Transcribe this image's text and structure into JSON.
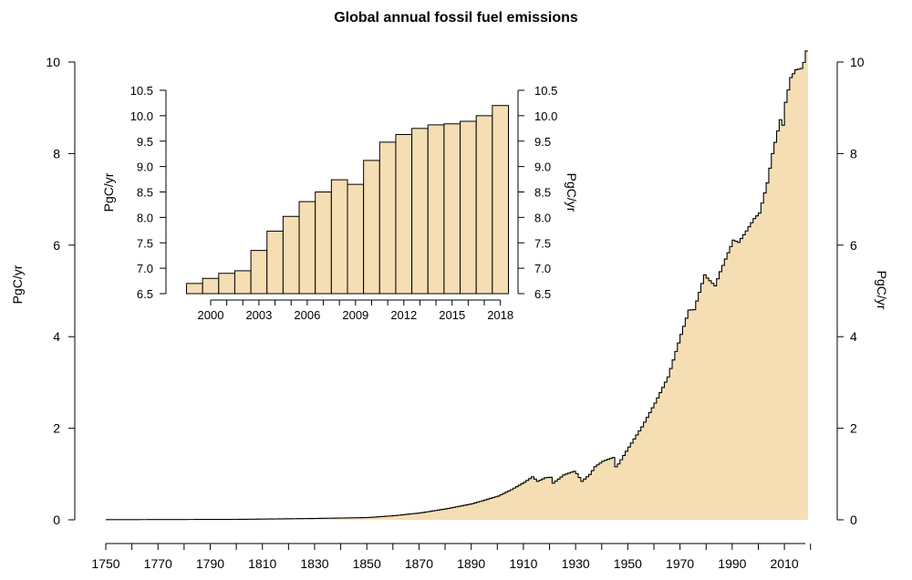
{
  "chart_data": [
    {
      "type": "area",
      "title": "Global annual fossil fuel emissions",
      "xlabel": "",
      "ylabel": "PgC/yr",
      "ylabel_right": "PgC/yr",
      "xlim": [
        1750,
        2018
      ],
      "ylim": [
        0,
        10
      ],
      "x_ticks": [
        "1750",
        "1770",
        "1790",
        "1810",
        "1830",
        "1850",
        "1870",
        "1890",
        "1910",
        "1930",
        "1950",
        "1970",
        "1990",
        "2010"
      ],
      "y_ticks": [
        "0",
        "2",
        "4",
        "6",
        "8",
        "10"
      ],
      "grid": false,
      "fill_color": "#f5deb3",
      "line_color": "#000000",
      "anchors": {
        "x": [
          1750,
          1800,
          1830,
          1850,
          1860,
          1870,
          1880,
          1890,
          1900,
          1905,
          1910,
          1913,
          1915,
          1918,
          1920,
          1921,
          1925,
          1929,
          1930,
          1932,
          1935,
          1937,
          1940,
          1944,
          1945,
          1946,
          1950,
          1955,
          1960,
          1965,
          1970,
          1973,
          1975,
          1979,
          1980,
          1983,
          1985,
          1989,
          1990,
          1992,
          1995,
          1998,
          2000,
          2003,
          2005,
          2008,
          2009,
          2010,
          2012,
          2014,
          2016,
          2017,
          2018
        ],
        "y": [
          0.003,
          0.01,
          0.03,
          0.05,
          0.09,
          0.15,
          0.24,
          0.35,
          0.52,
          0.66,
          0.82,
          0.94,
          0.84,
          0.92,
          0.93,
          0.8,
          0.98,
          1.06,
          1.01,
          0.84,
          0.99,
          1.16,
          1.28,
          1.36,
          1.16,
          1.22,
          1.59,
          2.03,
          2.55,
          3.12,
          4.05,
          4.58,
          4.59,
          5.35,
          5.28,
          5.11,
          5.42,
          5.97,
          6.11,
          6.06,
          6.31,
          6.58,
          6.7,
          7.36,
          8.0,
          8.74,
          8.62,
          9.12,
          9.66,
          9.83,
          9.86,
          9.99,
          10.24
        ]
      }
    },
    {
      "type": "bar",
      "title": "",
      "xlabel": "",
      "ylabel": "PgC/yr",
      "ylabel_right": "PgC/yr",
      "categories": [
        "1999",
        "2000",
        "2001",
        "2002",
        "2003",
        "2004",
        "2005",
        "2006",
        "2007",
        "2008",
        "2009",
        "2010",
        "2011",
        "2012",
        "2013",
        "2014",
        "2015",
        "2016",
        "2017",
        "2018"
      ],
      "values": [
        6.7,
        6.8,
        6.9,
        6.95,
        7.35,
        7.73,
        8.02,
        8.31,
        8.5,
        8.74,
        8.65,
        9.12,
        9.48,
        9.63,
        9.75,
        9.82,
        9.84,
        9.89,
        10.0,
        10.2
      ],
      "ylim": [
        6.5,
        10.5
      ],
      "x_ticks": [
        "2000",
        "2003",
        "2006",
        "2009",
        "2012",
        "2015",
        "2018"
      ],
      "y_ticks": [
        "6.5",
        "7.0",
        "7.5",
        "8.0",
        "8.5",
        "9.0",
        "9.5",
        "10.0",
        "10.5"
      ],
      "bar_color": "#f5deb3",
      "edge_color": "#000000"
    }
  ]
}
